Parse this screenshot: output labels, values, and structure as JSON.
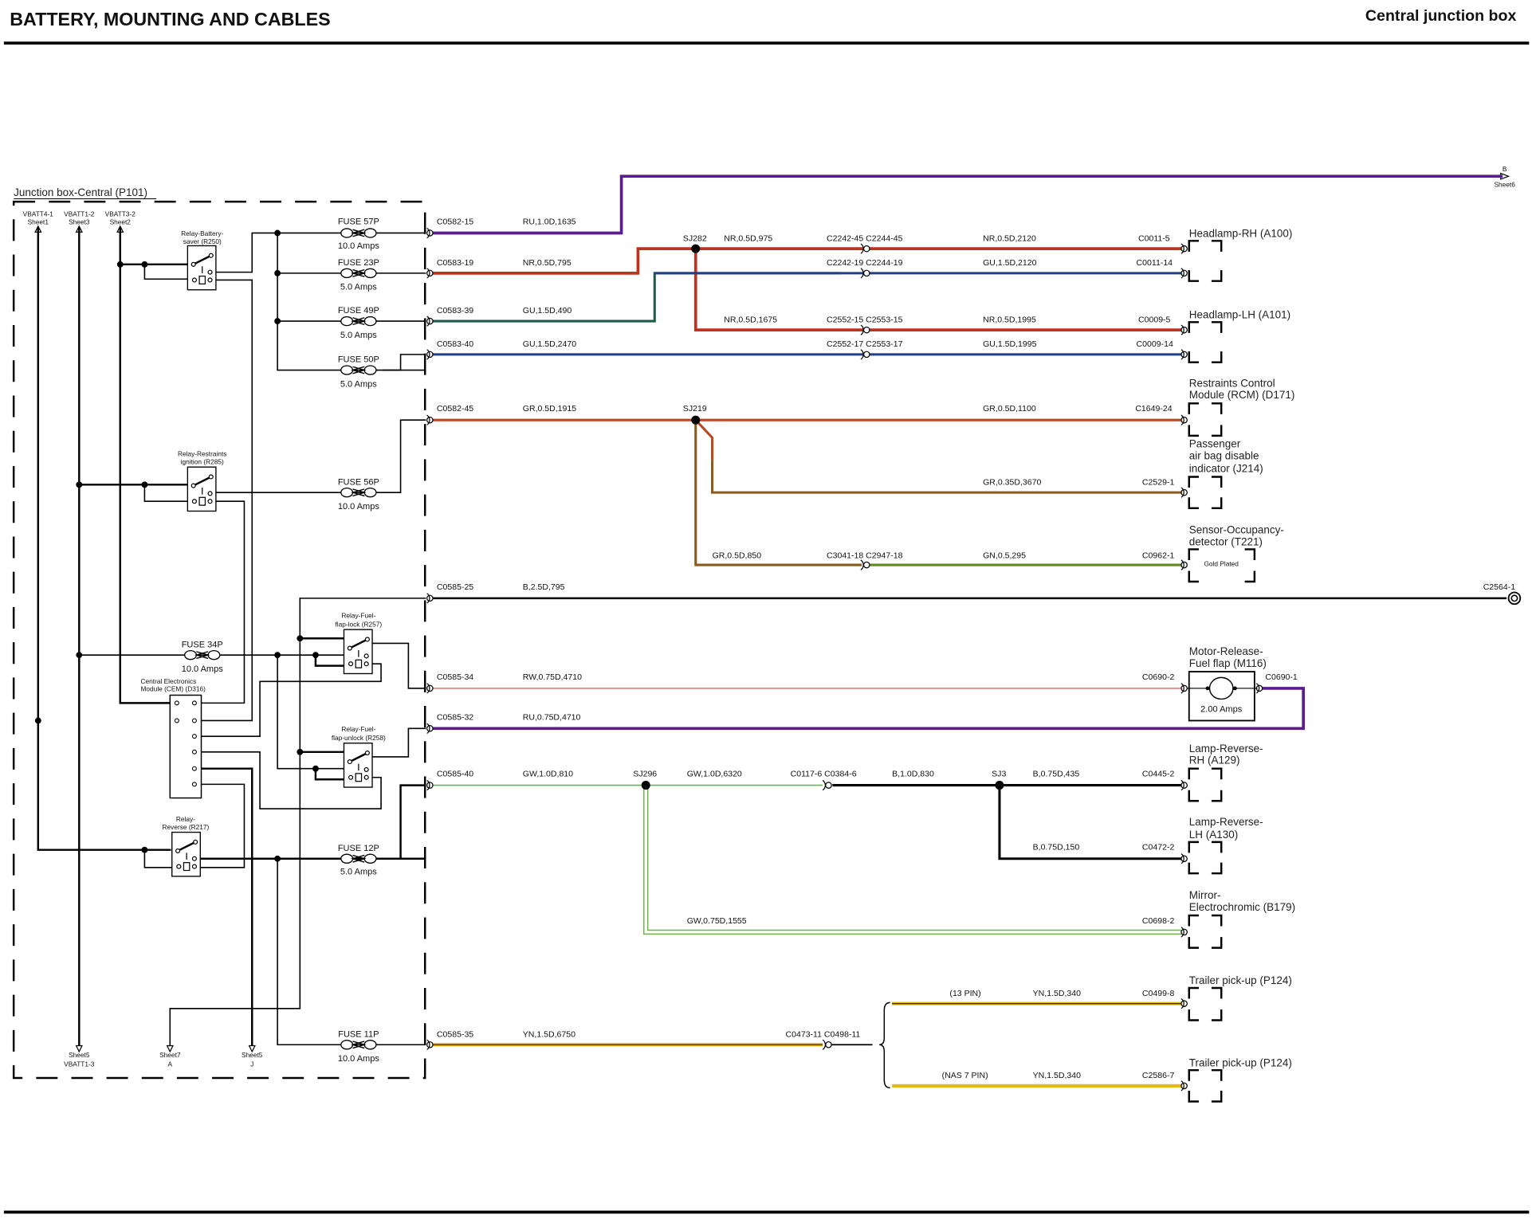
{
  "header": {
    "title": "BATTERY, MOUNTING AND CABLES",
    "section": "Central junction box"
  },
  "junction_box": {
    "label": "Junction box-Central (P101)"
  },
  "off_sheet_refs": [
    {
      "id": "VBATT4-1",
      "sheet": "Sheet1"
    },
    {
      "id": "VBATT1-2",
      "sheet": "Sheet3"
    },
    {
      "id": "VBATT3-2",
      "sheet": "Sheet2"
    },
    {
      "id": "Sheet5",
      "sheet": "VBATT1-3"
    },
    {
      "id": "Sheet7",
      "sheet": "A"
    },
    {
      "id": "Sheet5",
      "sheet": "J"
    },
    {
      "id": "B",
      "sheet": "Sheet6"
    }
  ],
  "fuses": [
    {
      "name": "FUSE 57P",
      "rating": "10.0 Amps"
    },
    {
      "name": "FUSE 23P",
      "rating": "5.0 Amps"
    },
    {
      "name": "FUSE 49P",
      "rating": "5.0 Amps"
    },
    {
      "name": "FUSE 50P",
      "rating": "5.0 Amps"
    },
    {
      "name": "FUSE 56P",
      "rating": "10.0 Amps"
    },
    {
      "name": "FUSE 34P",
      "rating": "10.0 Amps"
    },
    {
      "name": "FUSE 12P",
      "rating": "5.0 Amps"
    },
    {
      "name": "FUSE 11P",
      "rating": "10.0 Amps"
    }
  ],
  "relays": [
    {
      "line1": "Relay-Battery-",
      "line2": "saver (R250)"
    },
    {
      "line1": "Relay-Restraints",
      "line2": "ignition (R285)"
    },
    {
      "line1": "Relay-Fuel-",
      "line2": "flap-lock (R257)"
    },
    {
      "line1": "Relay-Fuel-",
      "line2": "flap-unlock (R258)"
    },
    {
      "line1": "Relay-",
      "line2": "Reverse (R217)"
    }
  ],
  "cem": {
    "line1": "Central Electronics",
    "line2": "Module (CEM) (D316)"
  },
  "wires": {
    "c0582_15": {
      "pin": "C0582-15",
      "spec": "RU,1.0D,1635"
    },
    "c0583_19": {
      "pin": "C0583-19",
      "spec": "NR,0.5D,795"
    },
    "sj282": "SJ282",
    "sj282_a": {
      "spec1": "NR,0.5D,975",
      "inline": "C2242-45 C2244-45",
      "spec2": "NR,0.5D,2120",
      "end": "C0011-5"
    },
    "c0583_39": {
      "pin": "C0583-39",
      "spec": "GU,1.5D,490"
    },
    "hl_rh_b": {
      "inline": "C2242-19 C2244-19",
      "spec2": "GU,1.5D,2120",
      "end": "C0011-14"
    },
    "sj282_b": {
      "spec1": "NR,0.5D,1675",
      "inline": "C2552-15 C2553-15",
      "spec2": "NR,0.5D,1995",
      "end": "C0009-5"
    },
    "c0583_40": {
      "pin": "C0583-40",
      "spec": "GU,1.5D,2470",
      "inline": "C2552-17 C2553-17",
      "spec2": "GU,1.5D,1995",
      "end": "C0009-14"
    },
    "c0582_45": {
      "pin": "C0582-45",
      "spec": "GR,0.5D,1915",
      "spec2": "GR,0.5D,1100",
      "end": "C1649-24"
    },
    "sj219": "SJ219",
    "sj219_b": {
      "spec": "GR,0.35D,3670",
      "end": "C2529-1"
    },
    "sj219_c": {
      "spec1": "GR,0.5D,850",
      "inline": "C3041-18 C2947-18",
      "spec2": "GN,0.5,295",
      "end": "C0962-1"
    },
    "c0585_25": {
      "pin": "C0585-25",
      "spec": "B,2.5D,795",
      "end": "C2564-1"
    },
    "c0585_34": {
      "pin": "C0585-34",
      "spec": "RW,0.75D,4710",
      "end": "C0690-2"
    },
    "c0690_1": "C0690-1",
    "c0585_32": {
      "pin": "C0585-32",
      "spec": "RU,0.75D,4710"
    },
    "c0585_40": {
      "pin": "C0585-40",
      "spec": "GW,1.0D,810"
    },
    "sj296": "SJ296",
    "sj296_a": {
      "spec1": "GW,1.0D,6320",
      "inline": "C0117-6 C0384-6",
      "spec2": "B,1.0D,830"
    },
    "sj3": "SJ3",
    "sj3_a": {
      "spec": "B,0.75D,435",
      "end": "C0445-2"
    },
    "sj3_b": {
      "spec": "B,0.75D,150",
      "end": "C0472-2"
    },
    "sj296_b": {
      "spec": "GW,0.75D,1555",
      "end": "C0698-2"
    },
    "c0585_35": {
      "pin": "C0585-35",
      "spec": "YN,1.5D,6750",
      "inline": "C0473-11 C0498-11"
    },
    "trailer_13": {
      "variant": "(13 PIN)",
      "spec": "YN,1.5D,340",
      "end": "C0499-8"
    },
    "trailer_7": {
      "variant": "(NAS 7 PIN)",
      "spec": "YN,1.5D,340",
      "end": "C2586-7"
    }
  },
  "components": {
    "headlamp_rh": "Headlamp-RH (A100)",
    "headlamp_lh": "Headlamp-LH (A101)",
    "rcm": [
      "Restraints Control",
      "Module (RCM) (D171)"
    ],
    "airbag": [
      "Passenger",
      "air bag disable",
      "indicator (J214)"
    ],
    "occupancy": [
      "Sensor-Occupancy-",
      "detector (T221)"
    ],
    "occupancy_note": "Gold Plated",
    "motor": [
      "Motor-Release-",
      "Fuel flap (M116)"
    ],
    "motor_rating": "2.00 Amps",
    "lamp_rev_rh": [
      "Lamp-Reverse-",
      "RH (A129)"
    ],
    "lamp_rev_lh": [
      "Lamp-Reverse-",
      "LH (A130)"
    ],
    "mirror": [
      "Mirror-",
      "Electrochromic (B179)"
    ],
    "trailer_1": "Trailer pick-up (P124)",
    "trailer_2": "Trailer pick-up (P124)"
  },
  "colors": {
    "RU": "#5b1d8e",
    "NR": "#c0321f",
    "GU_teal": "#1e5a4a",
    "GU": "#1f3f8a",
    "GR": "#b9481f",
    "GR_brown": "#8a5a1c",
    "GN": "#5f8a1e",
    "B": "#000000",
    "RW": "#e23b3b",
    "GW": "#6cb54c",
    "YN": "#e8b81a"
  }
}
